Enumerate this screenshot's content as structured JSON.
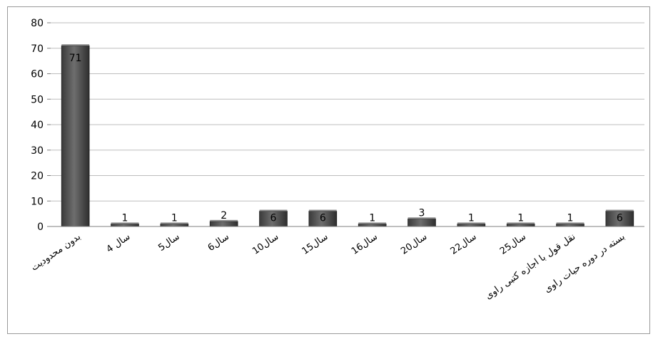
{
  "chart_data": {
    "type": "bar",
    "title": "",
    "xlabel": "",
    "ylabel": "",
    "categories": [
      "بدون محدودیت",
      "4 سال",
      "5سال",
      "6سال",
      "10سال",
      "15سال",
      "16سال",
      "20سال",
      "22سال",
      "25سال",
      "نقل قول با اجازه کتبی راوی",
      "بسته در دوره حیات راوی"
    ],
    "values": [
      71,
      1,
      1,
      2,
      6,
      6,
      1,
      3,
      1,
      1,
      1,
      6
    ],
    "data_labels": [
      "71",
      "1",
      "1",
      "2",
      "6",
      "6",
      "1",
      "3",
      "1",
      "1",
      "1",
      "6"
    ],
    "ylim": [
      0,
      80
    ],
    "yticks": [
      0,
      10,
      20,
      30,
      40,
      50,
      60,
      70,
      80
    ],
    "grid": true,
    "legend": "none",
    "colors": {
      "bar": "#4a4a4a",
      "bar_highlight": "#8c8c8c",
      "grid": "#bdbdbd",
      "axis": "#7f7f7f",
      "frame": "#9a9a9a"
    }
  }
}
